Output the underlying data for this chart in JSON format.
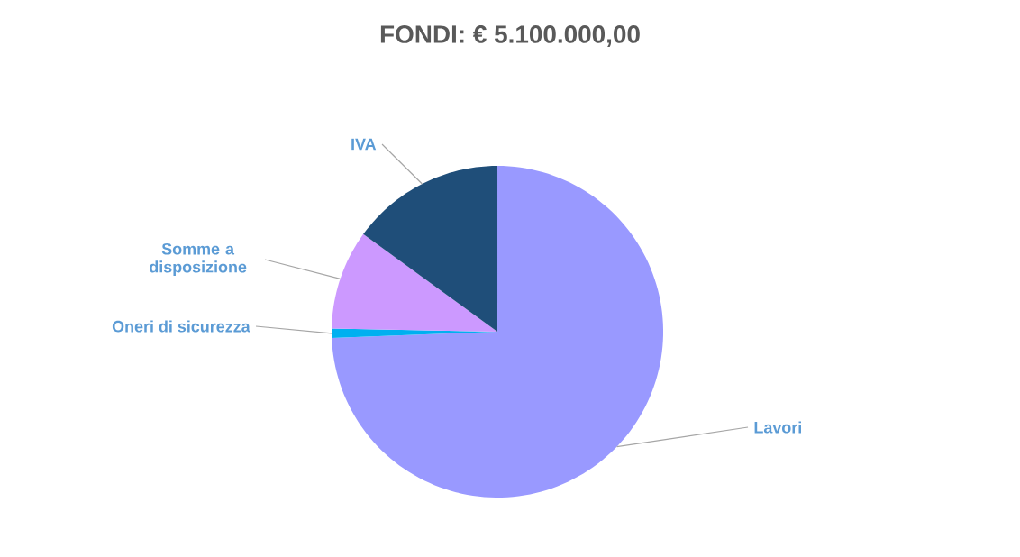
{
  "chart_data": {
    "type": "pie",
    "title": "FONDI: € 5.100.000,00",
    "categories": [
      "Lavori",
      "Oneri di sicurezza",
      "Somme a disposizione",
      "IVA"
    ],
    "values": [
      74.4,
      0.9,
      9.7,
      15.0
    ],
    "colors": [
      "#9999ff",
      "#00b0f0",
      "#cc99ff",
      "#1f4e79"
    ]
  }
}
